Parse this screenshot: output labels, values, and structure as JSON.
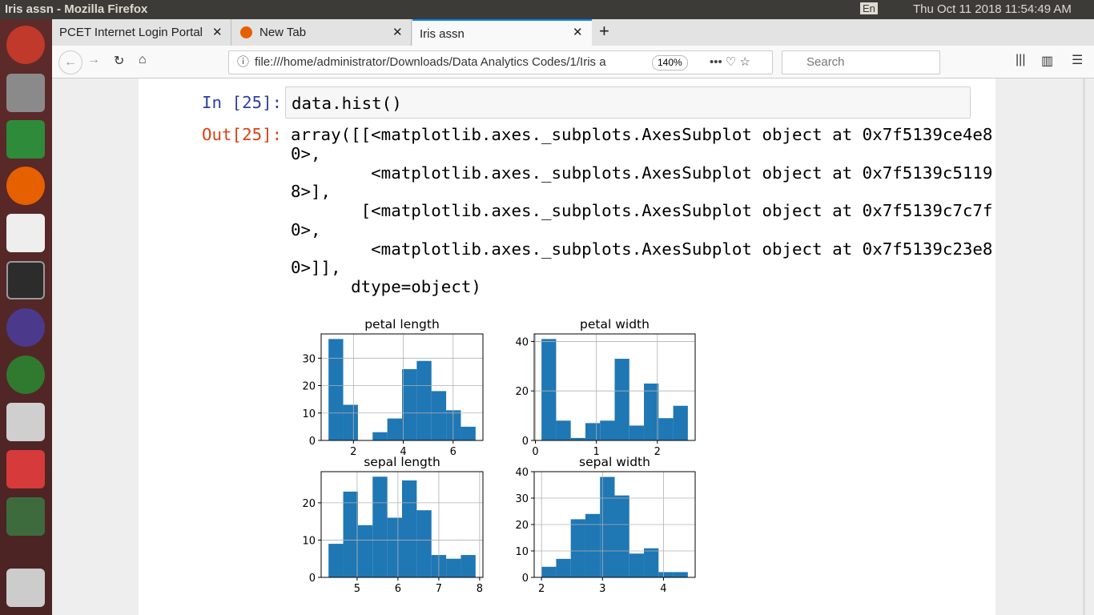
{
  "system_bar": {
    "window_title": "Iris assn - Mozilla Firefox",
    "keyboard": "En",
    "clock": "Thu Oct 11 2018 11:54:49 AM"
  },
  "tabs": [
    "PCET Internet Login Portal",
    "New Tab",
    "Iris assn"
  ],
  "toolbar": {
    "url": "file:///home/administrator/Downloads/Data Analytics Codes/1/Iris a",
    "zoom": "140%",
    "search": "Search"
  },
  "notebook": {
    "input_prompt": "In [25]:",
    "input_code": "data.hist()",
    "output_prompt": "Out[25]:",
    "output_lines": [
      "array([[<matplotlib.axes._subplots.AxesSubplot object at 0x7f5139ce4e8",
      "0>,",
      "        <matplotlib.axes._subplots.AxesSubplot object at 0x7f5139c5119",
      "8>],",
      "       [<matplotlib.axes._subplots.AxesSubplot object at 0x7f5139c7c7f",
      "0>,",
      "        <matplotlib.axes._subplots.AxesSubplot object at 0x7f5139c23e8",
      "0>]],",
      "      dtype=object)"
    ]
  },
  "chart_data": [
    {
      "type": "histogram",
      "title": "petal length",
      "color": "#1f77b4",
      "grid": true,
      "bins": [
        1.0,
        1.59,
        2.18,
        2.77,
        3.36,
        3.95,
        4.54,
        5.13,
        5.72,
        6.31,
        6.9
      ],
      "values": [
        37,
        13,
        0,
        3,
        8,
        26,
        29,
        18,
        11,
        5
      ],
      "xlim": [
        0.705,
        7.195
      ],
      "ylim": [
        0,
        38.85
      ],
      "xticks": [
        2,
        4,
        6
      ],
      "yticks": [
        0,
        10,
        20,
        30
      ]
    },
    {
      "type": "histogram",
      "title": "petal width",
      "color": "#1f77b4",
      "grid": true,
      "bins": [
        0.1,
        0.34,
        0.58,
        0.82,
        1.06,
        1.3,
        1.54,
        1.78,
        2.02,
        2.26,
        2.5
      ],
      "values": [
        41,
        8,
        1,
        7,
        8,
        33,
        6,
        23,
        9,
        14
      ],
      "xlim": [
        -0.02,
        2.62
      ],
      "ylim": [
        0,
        43.05
      ],
      "xticks": [
        0,
        1,
        2
      ],
      "yticks": [
        0,
        20,
        40
      ]
    },
    {
      "type": "histogram",
      "title": "sepal length",
      "color": "#1f77b4",
      "grid": true,
      "bins": [
        4.3,
        4.66,
        5.02,
        5.38,
        5.74,
        6.1,
        6.46,
        6.82,
        7.18,
        7.54,
        7.9
      ],
      "values": [
        9,
        23,
        14,
        27,
        16,
        26,
        18,
        6,
        5,
        6
      ],
      "xlim": [
        4.12,
        8.08
      ],
      "ylim": [
        0,
        28.35
      ],
      "xticks": [
        5,
        6,
        7,
        8
      ],
      "yticks": [
        0,
        10,
        20
      ]
    },
    {
      "type": "histogram",
      "title": "sepal width",
      "color": "#1f77b4",
      "grid": true,
      "bins": [
        2.0,
        2.24,
        2.48,
        2.72,
        2.96,
        3.2,
        3.44,
        3.68,
        3.92,
        4.16,
        4.4
      ],
      "values": [
        4,
        7,
        22,
        24,
        38,
        31,
        9,
        11,
        2,
        2
      ],
      "xlim": [
        1.88,
        4.52
      ],
      "ylim": [
        0,
        40
      ],
      "xticks": [
        2,
        3,
        4
      ],
      "yticks": [
        0,
        10,
        20,
        30,
        40
      ]
    }
  ]
}
